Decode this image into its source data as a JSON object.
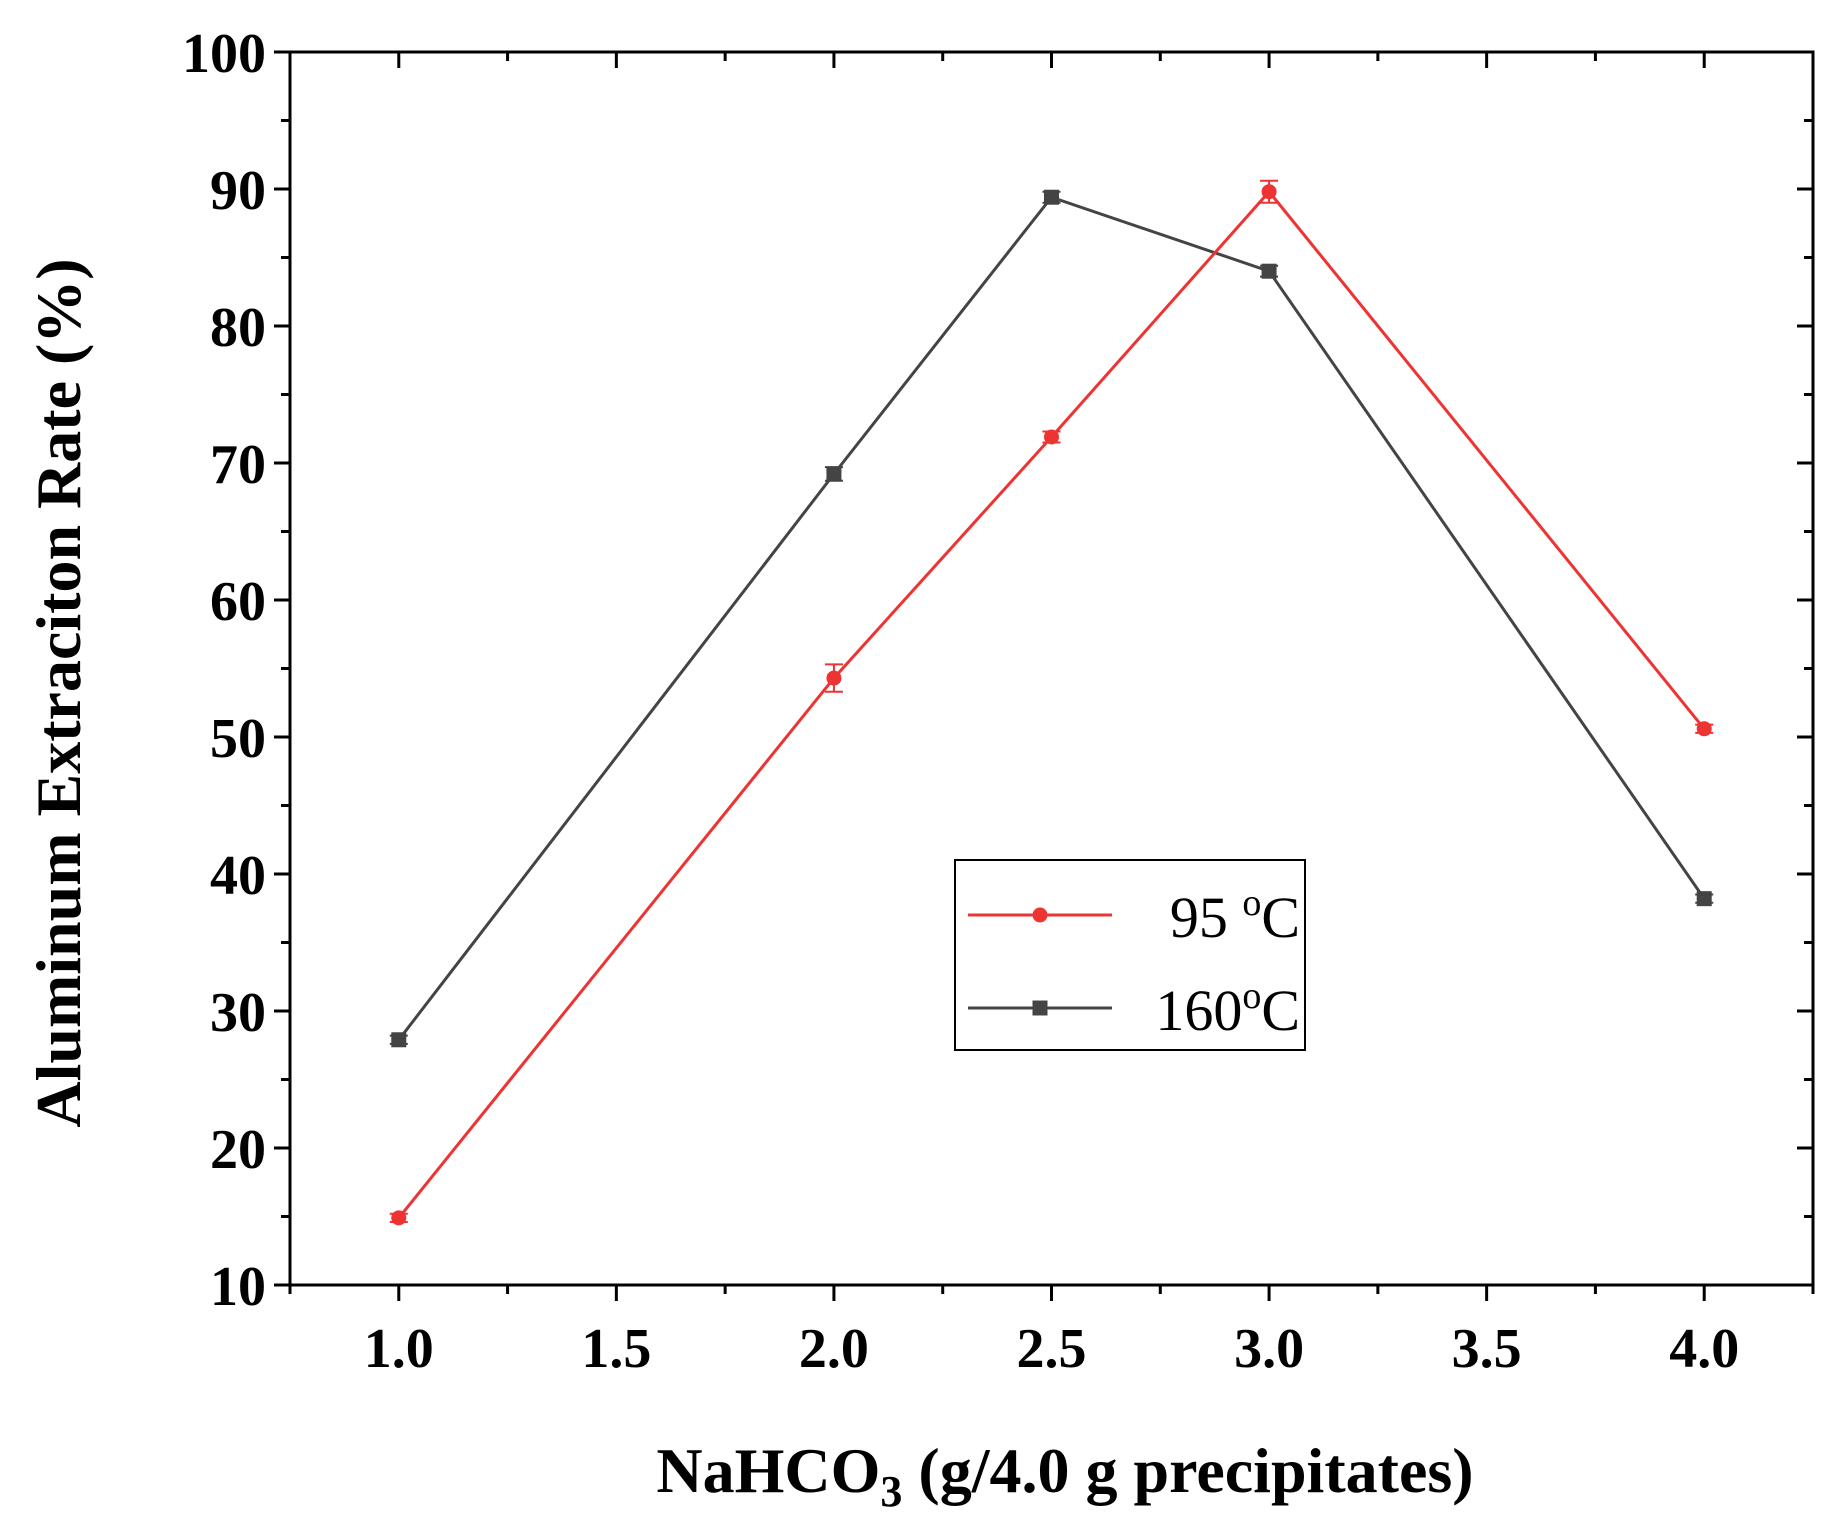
{
  "chart_data": {
    "type": "line",
    "title": "",
    "xlabel_main": "NaHCO",
    "xlabel_sub": "3",
    "xlabel_rest": " (g/4.0 g precipitates)",
    "ylabel": "Aluminum Extraciton Rate (%)",
    "xlim": [
      0.75,
      4.25
    ],
    "ylim": [
      10,
      100
    ],
    "xticks": [
      1.0,
      1.5,
      2.0,
      2.5,
      3.0,
      3.5,
      4.0
    ],
    "xtick_labels": [
      "1.0",
      "1.5",
      "2.0",
      "2.5",
      "3.0",
      "3.5",
      "4.0"
    ],
    "yticks": [
      10,
      20,
      30,
      40,
      50,
      60,
      70,
      80,
      90,
      100
    ],
    "ytick_labels": [
      "10",
      "20",
      "30",
      "40",
      "50",
      "60",
      "70",
      "80",
      "90",
      "100"
    ],
    "grid": false,
    "legend_position": "center-right",
    "series": [
      {
        "name": "95 oC",
        "label_main": "95 ",
        "label_sup": "o",
        "label_end": "C",
        "color": "#ee3333",
        "marker": "circle",
        "x": [
          1.0,
          2.0,
          2.5,
          3.0,
          4.0
        ],
        "y": [
          14.9,
          54.3,
          71.9,
          89.8,
          50.6
        ],
        "err": [
          0.3,
          1.0,
          0.4,
          0.8,
          0.3
        ]
      },
      {
        "name": "160oC",
        "label_main": "160",
        "label_sup": "o",
        "label_end": "C",
        "color": "#444444",
        "marker": "square",
        "x": [
          1.0,
          2.0,
          2.5,
          3.0,
          4.0
        ],
        "y": [
          27.9,
          69.2,
          89.4,
          84.0,
          38.2
        ],
        "err": [
          0.3,
          0.5,
          0.4,
          0.4,
          0.3
        ]
      }
    ]
  }
}
